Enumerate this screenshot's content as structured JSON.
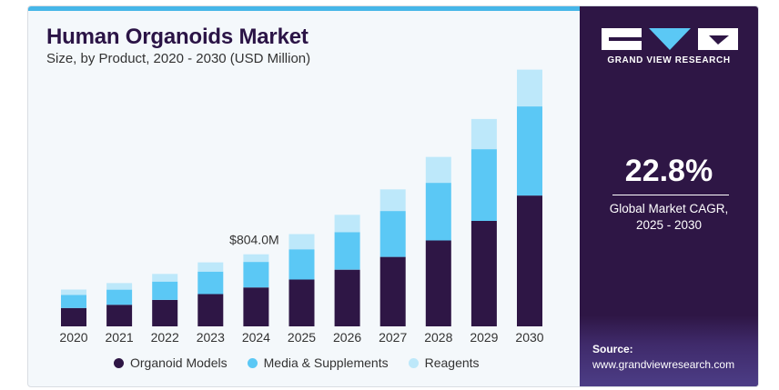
{
  "header": {
    "title": "Human Organoids Market",
    "subtitle": "Size, by Product, 2020 - 2030 (USD Million)"
  },
  "brand": {
    "name": "GRAND VIEW RESEARCH",
    "logo_icon": "gvr-logo-icon"
  },
  "cagr": {
    "value": "22.8%",
    "label_line1": "Global Market CAGR,",
    "label_line2": "2025 - 2030"
  },
  "source": {
    "title": "Source:",
    "url": "www.grandviewresearch.com"
  },
  "colors": {
    "organoid_models": "#2e1645",
    "media_supplements": "#5bc8f5",
    "reagents": "#bde8fa",
    "panel": "#2e1645",
    "accent_bar": "#46b6e8"
  },
  "chart_data": {
    "type": "bar",
    "stacked": true,
    "title": "Human Organoids Market",
    "subtitle": "Size, by Product, 2020 - 2030 (USD Million)",
    "xlabel": "",
    "ylabel": "",
    "categories": [
      "2020",
      "2021",
      "2022",
      "2023",
      "2024",
      "2025",
      "2026",
      "2027",
      "2028",
      "2029",
      "2030"
    ],
    "series": [
      {
        "name": "Organoid Models",
        "color": "#2e1645",
        "values": [
          205,
          241,
          295,
          360,
          434,
          522,
          632,
          775,
          958,
          1176,
          1459
        ]
      },
      {
        "name": "Media & Supplements",
        "color": "#5bc8f5",
        "values": [
          145,
          169,
          205,
          251,
          285,
          338,
          419,
          512,
          643,
          800,
          994
        ]
      },
      {
        "name": "Reagents",
        "color": "#bde8fa",
        "values": [
          61,
          73,
          85,
          103,
          85,
          169,
          193,
          241,
          289,
          337,
          410
        ]
      }
    ],
    "annotations": [
      {
        "category": "2024",
        "text": "$804.0M"
      }
    ],
    "ylim": [
      0,
      2900
    ],
    "grid": false,
    "legend_position": "bottom"
  }
}
